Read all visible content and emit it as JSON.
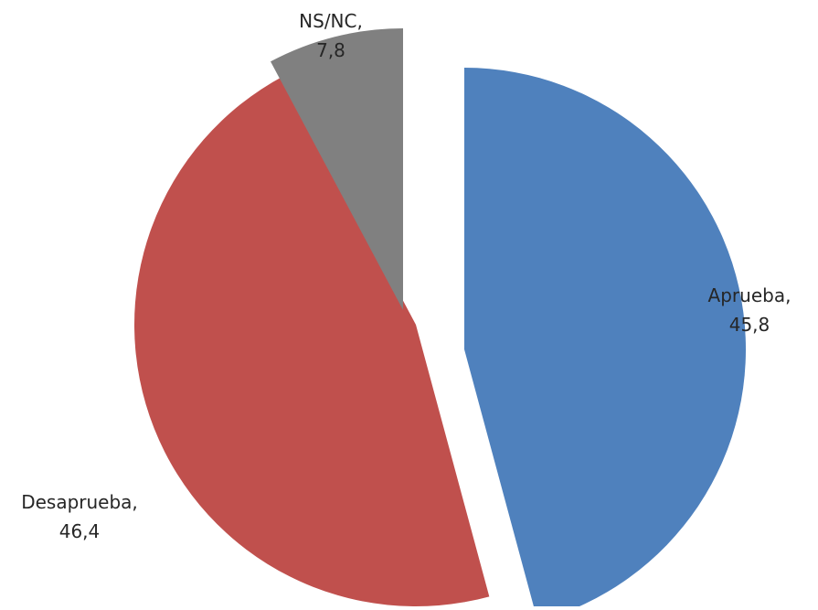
{
  "chart_data": {
    "type": "pie",
    "title": "",
    "exploded": true,
    "legend": "none",
    "data_labels": "category name and value, outside",
    "slices": [
      {
        "name": "Aprueba",
        "value": 45.8,
        "label_line1": "Aprueba,",
        "label_line2": "45,8",
        "color": "#4F81BD"
      },
      {
        "name": "Desaprueba",
        "value": 46.4,
        "label_line1": "Desaprueba,",
        "label_line2": "46,4",
        "color": "#C0504D"
      },
      {
        "name": "NS/NC",
        "value": 7.8,
        "label_line1": "NS/NC,",
        "label_line2": "7,8",
        "color": "#808080"
      }
    ]
  }
}
